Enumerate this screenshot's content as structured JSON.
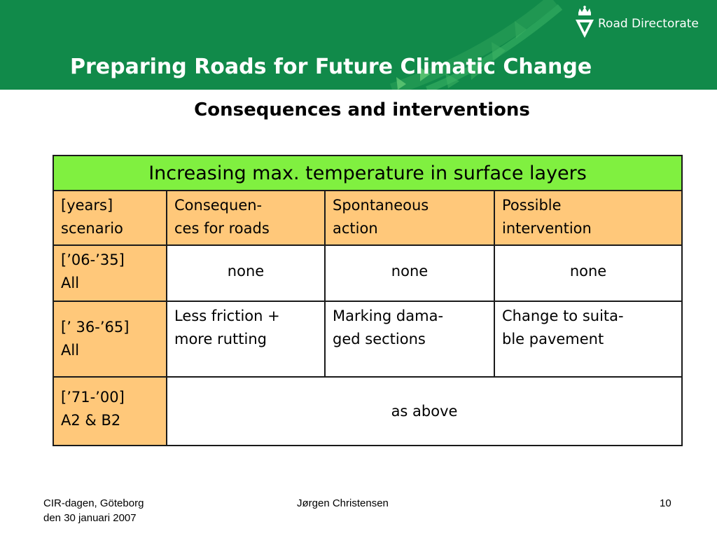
{
  "slide": {
    "title": "Preparing Roads for Future Climatic Change",
    "subtitle": "Consequences and interventions",
    "logo_text": "Road Directorate",
    "colors": {
      "header_green": "#118a4a",
      "table_header": "#80f040",
      "column_header": "#ffc87a"
    }
  },
  "table": {
    "header": "Increasing max. temperature in surface layers",
    "columns": [
      [
        "[years]",
        "scenario"
      ],
      [
        "Consequen-",
        "ces for roads"
      ],
      [
        "Spontaneous",
        "action"
      ],
      [
        "Possible",
        "intervention"
      ]
    ],
    "rows": [
      {
        "scenario": [
          "[’06-’35]",
          "All"
        ],
        "consequences": "none",
        "action": "none",
        "intervention": "none"
      },
      {
        "scenario": [
          "[’ 36-’65]",
          "All"
        ],
        "consequences": [
          "Less friction +",
          "more rutting"
        ],
        "action": [
          "Marking dama-",
          "ged sections"
        ],
        "intervention": [
          "Change to suita-",
          "ble pavement"
        ]
      },
      {
        "scenario": [
          "[’71-’00]",
          "A2 & B2"
        ],
        "merged": "as above"
      }
    ]
  },
  "footer": {
    "left_line1": "CIR-dagen, Göteborg",
    "left_line2": "den 30 januari 2007",
    "center": "Jørgen Christensen",
    "page_number": "10"
  }
}
